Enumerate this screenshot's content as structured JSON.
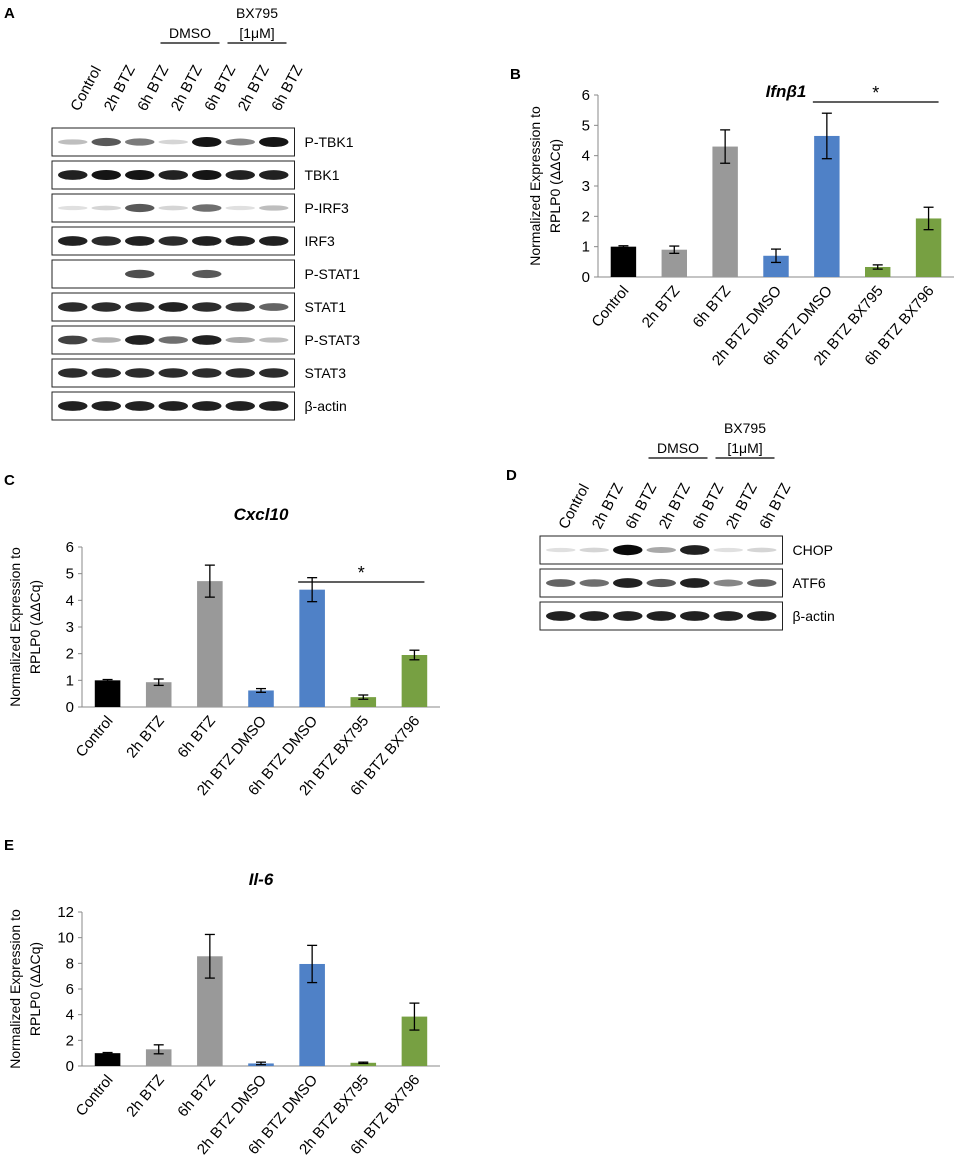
{
  "panels": {
    "A": {
      "letter": "A",
      "lanes": [
        "Control",
        "2h BTZ",
        "6h BTZ",
        "2h BTZ",
        "6h BTZ",
        "2h BTZ",
        "6h BTZ"
      ],
      "groups": [
        {
          "label": "DMSO",
          "sublabel": ""
        },
        {
          "label": "BX795",
          "sublabel": "[1μM]"
        }
      ],
      "rows": [
        {
          "label": "P-TBK1",
          "intensity": [
            0.2,
            0.65,
            0.5,
            0.1,
            0.95,
            0.45,
            0.95
          ]
        },
        {
          "label": "TBK1",
          "intensity": [
            0.9,
            0.95,
            0.95,
            0.9,
            0.95,
            0.9,
            0.9
          ]
        },
        {
          "label": "P-IRF3",
          "intensity": [
            0.05,
            0.1,
            0.65,
            0.1,
            0.55,
            0.05,
            0.2
          ]
        },
        {
          "label": "IRF3",
          "intensity": [
            0.9,
            0.85,
            0.9,
            0.85,
            0.9,
            0.9,
            0.9
          ]
        },
        {
          "label": "P-STAT1",
          "intensity": [
            0.0,
            0.0,
            0.7,
            0.0,
            0.65,
            0.0,
            0.0
          ]
        },
        {
          "label": "STAT1",
          "intensity": [
            0.85,
            0.85,
            0.85,
            0.9,
            0.85,
            0.8,
            0.6
          ]
        },
        {
          "label": "P-STAT3",
          "intensity": [
            0.75,
            0.25,
            0.9,
            0.55,
            0.9,
            0.3,
            0.2
          ]
        },
        {
          "label": "STAT3",
          "intensity": [
            0.85,
            0.85,
            0.85,
            0.85,
            0.85,
            0.85,
            0.85
          ]
        },
        {
          "label": "β-actin",
          "intensity": [
            0.9,
            0.9,
            0.9,
            0.9,
            0.9,
            0.9,
            0.9
          ]
        }
      ]
    },
    "D": {
      "letter": "D",
      "lanes": [
        "Control",
        "2h BTZ",
        "6h BTZ",
        "2h BTZ",
        "6h BTZ",
        "2h BTZ",
        "6h BTZ"
      ],
      "groups": [
        {
          "label": "DMSO",
          "sublabel": ""
        },
        {
          "label": "BX795",
          "sublabel": "[1μM]"
        }
      ],
      "rows": [
        {
          "label": "CHOP",
          "intensity": [
            0.05,
            0.1,
            1.0,
            0.3,
            0.9,
            0.05,
            0.1
          ]
        },
        {
          "label": "ATF6",
          "intensity": [
            0.6,
            0.55,
            0.9,
            0.65,
            0.9,
            0.45,
            0.6
          ]
        },
        {
          "label": "β-actin",
          "intensity": [
            0.9,
            0.9,
            0.9,
            0.9,
            0.9,
            0.9,
            0.9
          ]
        }
      ]
    }
  },
  "colors": {
    "control": "#000000",
    "btz": "#999999",
    "dmso": "#4f81c7",
    "bx": "#77a042"
  },
  "chart_data": [
    {
      "id": "B",
      "letter": "B",
      "type": "bar",
      "title": "Ifnβ1",
      "ylabel": "Normalized Expression to RPLP0 (ΔΔCq)",
      "ylabel_lines": [
        "Normalized Expression to",
        "RPLP0 (ΔΔCq)"
      ],
      "ylim": [
        0,
        6
      ],
      "yticks": [
        0,
        1,
        2,
        3,
        4,
        5,
        6
      ],
      "categories": [
        "Control",
        "2h BTZ",
        "6h BTZ",
        "2h BTZ DMSO",
        "6h BTZ DMSO",
        "2h BTZ BX795",
        "6h BTZ BX796"
      ],
      "values": [
        1.0,
        0.9,
        4.3,
        0.7,
        4.65,
        0.33,
        1.93
      ],
      "errors": [
        0.03,
        0.12,
        0.55,
        0.22,
        0.75,
        0.07,
        0.37
      ],
      "colors": [
        "#000000",
        "#999999",
        "#999999",
        "#4f81c7",
        "#4f81c7",
        "#77a042",
        "#77a042"
      ],
      "significance": {
        "from": 4,
        "to": 6,
        "label": "*"
      }
    },
    {
      "id": "C",
      "letter": "C",
      "type": "bar",
      "title": "Cxcl10",
      "ylabel": "Normalized Expression to RPLP0 (ΔΔCq)",
      "ylabel_lines": [
        "Normalized Expression to",
        "RPLP0 (ΔΔCq)"
      ],
      "ylim": [
        0,
        6
      ],
      "yticks": [
        0,
        1,
        2,
        3,
        4,
        5,
        6
      ],
      "categories": [
        "Control",
        "2h BTZ",
        "6h BTZ",
        "2h BTZ DMSO",
        "6h BTZ DMSO",
        "2h BTZ BX795",
        "6h BTZ BX796"
      ],
      "values": [
        1.0,
        0.93,
        4.72,
        0.62,
        4.4,
        0.37,
        1.95
      ],
      "errors": [
        0.03,
        0.12,
        0.6,
        0.07,
        0.45,
        0.08,
        0.18
      ],
      "colors": [
        "#000000",
        "#999999",
        "#999999",
        "#4f81c7",
        "#4f81c7",
        "#77a042",
        "#77a042"
      ],
      "significance": {
        "from": 4,
        "to": 6,
        "label": "*"
      }
    },
    {
      "id": "E",
      "letter": "E",
      "type": "bar",
      "title": "Il-6",
      "ylabel": "Normalized Expression to RPLP0 (ΔΔCq)",
      "ylabel_lines": [
        "Normalized Expression to",
        "RPLP0 (ΔΔCq)"
      ],
      "ylim": [
        0,
        12
      ],
      "yticks": [
        0,
        2,
        4,
        6,
        8,
        10,
        12
      ],
      "categories": [
        "Control",
        "2h BTZ",
        "6h BTZ",
        "2h BTZ DMSO",
        "6h BTZ DMSO",
        "2h BTZ BX795",
        "6h BTZ BX796"
      ],
      "values": [
        1.0,
        1.3,
        8.55,
        0.2,
        7.95,
        0.25,
        3.85
      ],
      "errors": [
        0.05,
        0.35,
        1.7,
        0.1,
        1.45,
        0.05,
        1.05
      ],
      "colors": [
        "#000000",
        "#999999",
        "#999999",
        "#4f81c7",
        "#4f81c7",
        "#77a042",
        "#77a042"
      ]
    }
  ]
}
